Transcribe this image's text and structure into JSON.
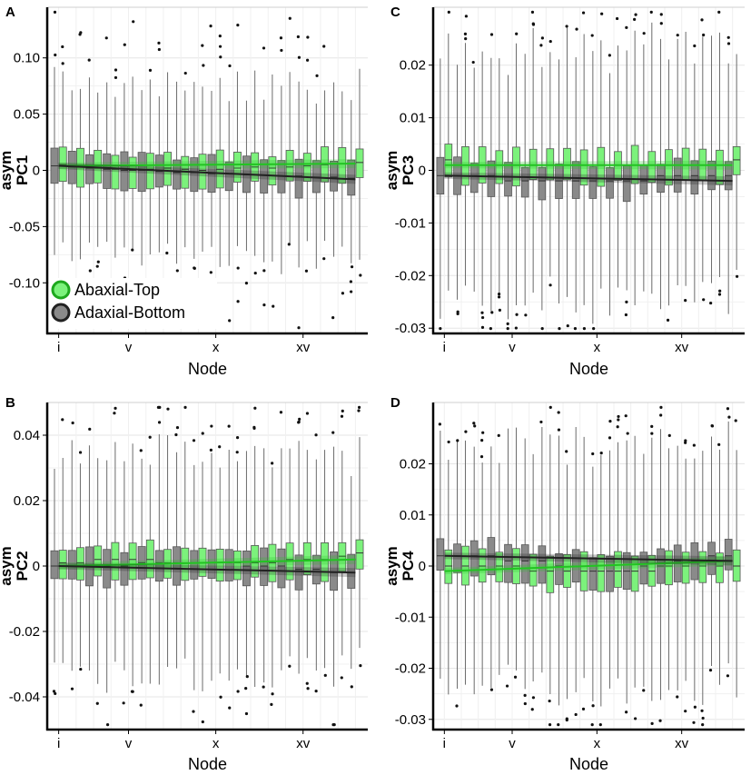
{
  "chart_data": [
    {
      "panel": "A",
      "type": "boxplot",
      "ylabel_top": "asym",
      "ylabel_bottom": "PC1",
      "xlabel": "Node",
      "ylim": [
        -0.145,
        0.145
      ],
      "yticks": [
        0.1,
        0.05,
        0,
        -0.05,
        -0.1
      ],
      "ytick_labels": [
        "0.10",
        "0.05",
        "0",
        "-0.05",
        "-0.10"
      ],
      "xtick_labels": [
        "i",
        "v",
        "x",
        "xv"
      ],
      "whisker": 0.08,
      "series": [
        {
          "name": "Abaxial-Top",
          "color": "#7cf27c",
          "line_color": "#22c422",
          "medians": [
            0.005,
            0.003,
            0.002,
            0.001,
            0.0,
            0.001,
            0.002,
            0.001,
            0.0,
            0.001,
            0.002,
            0.003,
            0.002,
            0.003,
            0.004,
            0.005,
            0.006,
            0.007
          ],
          "line": [
            0.004,
            0.006
          ]
        },
        {
          "name": "Adaxial-Bottom",
          "color": "#8a8a8a",
          "line_color": "#222222",
          "medians": [
            0.004,
            0.003,
            0.002,
            0.001,
            0.0,
            0.0,
            -0.001,
            -0.002,
            -0.002,
            -0.003,
            -0.003,
            -0.004,
            -0.004,
            -0.005,
            -0.005,
            -0.006,
            -0.006,
            -0.007
          ],
          "line": [
            0.004,
            -0.008
          ]
        }
      ],
      "legend": [
        "Abaxial-Top",
        "Adaxial-Bottom"
      ]
    },
    {
      "panel": "C",
      "type": "boxplot",
      "ylabel_top": "asym",
      "ylabel_bottom": "PC3",
      "xlabel": "Node",
      "ylim": [
        -0.031,
        0.031
      ],
      "yticks": [
        0.02,
        0.01,
        0,
        -0.01,
        -0.02,
        -0.03
      ],
      "ytick_labels": [
        "0.02",
        "0.01",
        "0",
        "-0.01",
        "-0.02",
        "-0.03"
      ],
      "xtick_labels": [
        "i",
        "v",
        "x",
        "xv"
      ],
      "whisker": 0.025,
      "series": [
        {
          "name": "Abaxial-Top",
          "color": "#7cf27c",
          "line_color": "#22c422",
          "medians": [
            0.002,
            0.001,
            0.001,
            0.001,
            0.001,
            0.001,
            0.001,
            0.001,
            0.001,
            0.001,
            0.001,
            0.001,
            0.001,
            0.001,
            0.001,
            0.001,
            0.001,
            0.002
          ],
          "line": [
            0.001,
            0.001
          ]
        },
        {
          "name": "Adaxial-Bottom",
          "color": "#8a8a8a",
          "line_color": "#222222",
          "medians": [
            -0.001,
            -0.001,
            -0.001,
            -0.001,
            -0.002,
            -0.002,
            -0.002,
            -0.002,
            -0.002,
            -0.002,
            -0.002,
            -0.002,
            -0.002,
            -0.001,
            -0.001,
            -0.001,
            -0.001,
            -0.001
          ],
          "line": [
            -0.001,
            -0.002
          ]
        }
      ]
    },
    {
      "panel": "B",
      "type": "boxplot",
      "ylabel_top": "asym",
      "ylabel_bottom": "PC2",
      "xlabel": "Node",
      "ylim": [
        -0.05,
        0.05
      ],
      "yticks": [
        0.04,
        0.02,
        0,
        -0.02,
        -0.04
      ],
      "ytick_labels": [
        "0.04",
        "0.02",
        "0",
        "-0.02",
        "-0.04"
      ],
      "xtick_labels": [
        "i",
        "v",
        "x",
        "xv"
      ],
      "whisker": 0.036,
      "series": [
        {
          "name": "Abaxial-Top",
          "color": "#7cf27c",
          "line_color": "#22c422",
          "medians": [
            0.001,
            0.001,
            0.002,
            0.002,
            0.002,
            0.002,
            0.001,
            0.001,
            0.001,
            0.001,
            0.001,
            0.001,
            0.001,
            0.002,
            0.002,
            0.002,
            0.003,
            0.004
          ],
          "line": [
            0.0,
            0.002
          ]
        },
        {
          "name": "Adaxial-Bottom",
          "color": "#8a8a8a",
          "line_color": "#222222",
          "medians": [
            0.0,
            0.0,
            0.0,
            0.0,
            0.0,
            0.001,
            0.001,
            0.001,
            0.001,
            0.001,
            0.001,
            0.0,
            0.0,
            0.0,
            -0.001,
            -0.001,
            -0.002,
            -0.002
          ],
          "line": [
            0.0,
            -0.002
          ]
        }
      ]
    },
    {
      "panel": "D",
      "type": "boxplot",
      "ylabel_top": "asym",
      "ylabel_bottom": "PC4",
      "xlabel": "Node",
      "ylim": [
        -0.032,
        0.032
      ],
      "yticks": [
        0.02,
        0.01,
        0,
        -0.01,
        -0.02,
        -0.03
      ],
      "ytick_labels": [
        "0.02",
        "0.01",
        "0",
        "-0.01",
        "-0.02",
        "-0.03"
      ],
      "xtick_labels": [
        "i",
        "v",
        "x",
        "xv"
      ],
      "whisker": 0.025,
      "series": [
        {
          "name": "Abaxial-Top",
          "color": "#7cf27c",
          "line_color": "#22c422",
          "medians": [
            0.0,
            0.0,
            0.0,
            0.0,
            0.0,
            -0.001,
            -0.001,
            -0.001,
            -0.001,
            -0.001,
            -0.001,
            -0.001,
            -0.001,
            0.0,
            0.0,
            0.0,
            0.0,
            0.0
          ],
          "line": [
            -0.001,
            0.001
          ]
        },
        {
          "name": "Adaxial-Bottom",
          "color": "#8a8a8a",
          "line_color": "#222222",
          "medians": [
            0.002,
            0.002,
            0.002,
            0.002,
            0.001,
            0.001,
            0.001,
            0.0,
            0.0,
            -0.001,
            -0.001,
            -0.001,
            0.0,
            0.0,
            0.001,
            0.001,
            0.002,
            0.002
          ],
          "line": [
            0.002,
            0.001
          ]
        }
      ]
    }
  ]
}
